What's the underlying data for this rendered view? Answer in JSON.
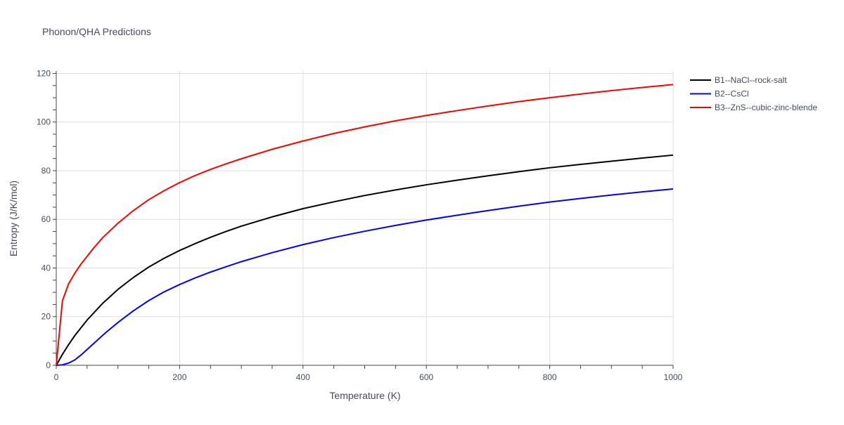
{
  "chart_data": {
    "type": "line",
    "title": "Phonon/QHA Predictions",
    "xlabel": "Temperature (K)",
    "ylabel": "Entropy (J/K/mol)",
    "xlim": [
      0,
      1000
    ],
    "ylim": [
      0,
      121
    ],
    "x_ticks": [
      0,
      200,
      400,
      600,
      800,
      1000
    ],
    "y_ticks": [
      0,
      20,
      40,
      60,
      80,
      100,
      120
    ],
    "grid": true,
    "legend_position": "top-right",
    "series": [
      {
        "name": "B1--NaCl--rock-salt",
        "color": "#000000",
        "x": [
          0,
          10,
          20,
          30,
          50,
          75,
          100,
          125,
          150,
          175,
          200,
          225,
          250,
          275,
          300,
          350,
          400,
          450,
          500,
          550,
          600,
          650,
          700,
          750,
          800,
          850,
          900,
          950,
          1000
        ],
        "y": [
          0,
          4.5,
          8.5,
          12.2,
          18.6,
          25.4,
          31.2,
          36.1,
          40.4,
          44.0,
          47.2,
          50.0,
          52.6,
          55.0,
          57.2,
          61.0,
          64.4,
          67.2,
          69.8,
          72.1,
          74.2,
          76.1,
          77.9,
          79.6,
          81.2,
          82.6,
          83.9,
          85.2,
          86.4
        ]
      },
      {
        "name": "B2--CsCl",
        "color": "#0000ff",
        "x": [
          0,
          10,
          20,
          30,
          40,
          60,
          80,
          100,
          125,
          150,
          175,
          200,
          225,
          250,
          275,
          300,
          350,
          400,
          450,
          500,
          550,
          600,
          650,
          700,
          750,
          800,
          850,
          900,
          950,
          1000
        ],
        "y": [
          0,
          0.2,
          0.9,
          2.2,
          4.2,
          8.8,
          13.4,
          17.6,
          22.4,
          26.6,
          30.2,
          33.2,
          35.9,
          38.3,
          40.5,
          42.6,
          46.3,
          49.6,
          52.5,
          55.1,
          57.5,
          59.7,
          61.7,
          63.6,
          65.4,
          67.1,
          68.6,
          70.0,
          71.3,
          72.5
        ]
      },
      {
        "name": "B3--ZnS--cubic-zinc-blende",
        "color": "#ff0000",
        "x": [
          0,
          10,
          20,
          30,
          40,
          50,
          60,
          75,
          100,
          125,
          150,
          175,
          200,
          225,
          250,
          275,
          300,
          350,
          400,
          450,
          500,
          550,
          600,
          650,
          700,
          750,
          800,
          850,
          900,
          950,
          1000
        ],
        "y": [
          0,
          26.5,
          33.5,
          37.8,
          41.6,
          44.8,
          48.0,
          52.4,
          58.4,
          63.6,
          68.1,
          71.8,
          75.1,
          78.0,
          80.5,
          82.8,
          84.9,
          88.8,
          92.2,
          95.3,
          98.0,
          100.5,
          102.7,
          104.7,
          106.6,
          108.4,
          110.0,
          111.5,
          112.9,
          114.2,
          115.4
        ]
      }
    ]
  }
}
